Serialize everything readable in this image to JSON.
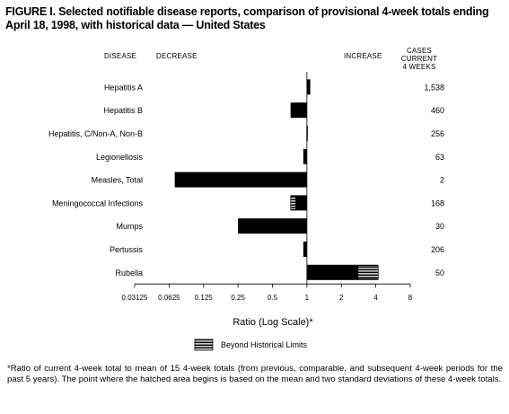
{
  "title": "FIGURE I. Selected notifiable disease reports, comparison of provisional 4-week totals ending April 18, 1998, with historical data — United States",
  "headers": {
    "disease": "DISEASE",
    "decrease": "DECREASE",
    "increase": "INCREASE",
    "cases_line1": "CASES CURRENT",
    "cases_line2": "4 WEEKS"
  },
  "legend": {
    "label": "Beyond Historical Limits"
  },
  "footnote": "*Ratio of current 4-week total to mean of 15 4-week totals (from previous, comparable, and subsequent 4-week periods for the past 5 years). The point where the hatched area begins is based on the mean and two standard deviations of these 4-week totals.",
  "chart_data": {
    "type": "bar",
    "orientation": "horizontal",
    "xlabel": "Ratio (Log Scale)*",
    "xscale": "log2",
    "xlim": [
      0.03125,
      8
    ],
    "baseline": 1,
    "xticks": [
      0.03125,
      0.0625,
      0.125,
      0.25,
      0.5,
      1,
      2,
      4,
      8
    ],
    "xtick_labels": [
      "0.03125",
      "0.0625",
      "0.125",
      "0.25",
      "0.5",
      "1",
      "2",
      "4",
      "8"
    ],
    "categories": [
      "Hepatitis A",
      "Hepatitis B",
      "Hepatitis, C/Non-A, Non-B",
      "Legionellosis",
      "Measles, Total",
      "Meningococcal Infections",
      "Mumps",
      "Pertussis",
      "Rubella"
    ],
    "values": [
      1.07,
      0.72,
      0.99,
      0.93,
      0.07,
      0.72,
      0.25,
      0.93,
      4.2
    ],
    "historical_limit": [
      null,
      null,
      null,
      null,
      null,
      0.8,
      null,
      null,
      2.8
    ],
    "cases_current_4_weeks": [
      "1,538",
      "460",
      "256",
      "63",
      "2",
      "168",
      "30",
      "206",
      "50"
    ],
    "colors": {
      "bar": "#000000",
      "hatch": "#ffffff"
    },
    "grid": false
  }
}
